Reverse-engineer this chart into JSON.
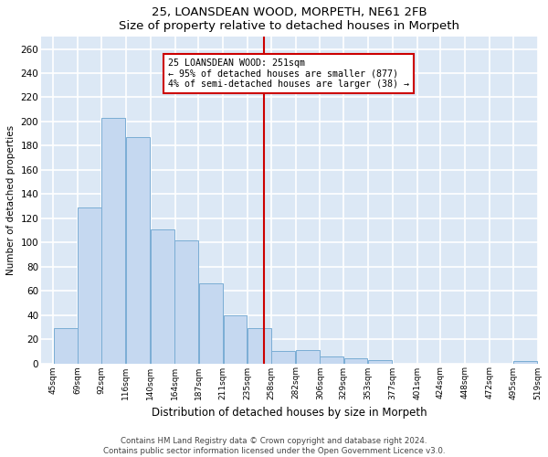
{
  "title": "25, LOANSDEAN WOOD, MORPETH, NE61 2FB",
  "subtitle": "Size of property relative to detached houses in Morpeth",
  "xlabel": "Distribution of detached houses by size in Morpeth",
  "ylabel": "Number of detached properties",
  "bar_color": "#c5d8f0",
  "bar_edge_color": "#7aadd4",
  "background_color": "#dce8f5",
  "fig_background": "#ffffff",
  "grid_color": "#ffffff",
  "vline_color": "#cc0000",
  "vline_x_sqm": 251,
  "annotation_text1": "25 LOANSDEAN WOOD: 251sqm",
  "annotation_text2": "← 95% of detached houses are smaller (877)",
  "annotation_text3": "4% of semi-detached houses are larger (38) →",
  "annotation_box_color": "#cc0000",
  "footer1": "Contains HM Land Registry data © Crown copyright and database right 2024.",
  "footer2": "Contains public sector information licensed under the Open Government Licence v3.0.",
  "bins": [
    45,
    69,
    92,
    116,
    140,
    164,
    187,
    211,
    235,
    258,
    282,
    306,
    329,
    353,
    377,
    401,
    424,
    448,
    472,
    495,
    519
  ],
  "counts": [
    29,
    129,
    203,
    187,
    111,
    102,
    66,
    40,
    29,
    10,
    11,
    6,
    4,
    3,
    0,
    0,
    0,
    0,
    0,
    2
  ],
  "ylim": [
    0,
    270
  ],
  "yticks": [
    0,
    20,
    40,
    60,
    80,
    100,
    120,
    140,
    160,
    180,
    200,
    220,
    240,
    260
  ],
  "tick_labels": [
    "45sqm",
    "69sqm",
    "92sqm",
    "116sqm",
    "140sqm",
    "164sqm",
    "187sqm",
    "211sqm",
    "235sqm",
    "258sqm",
    "282sqm",
    "306sqm",
    "329sqm",
    "353sqm",
    "377sqm",
    "401sqm",
    "424sqm",
    "448sqm",
    "472sqm",
    "495sqm",
    "519sqm"
  ]
}
